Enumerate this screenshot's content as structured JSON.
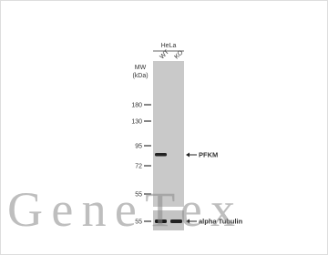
{
  "header": {
    "cell_line": "HeLa",
    "lanes": [
      "WT",
      "KO"
    ]
  },
  "mw_label": [
    "MW",
    "(kDa)"
  ],
  "markers": [
    "180",
    "130",
    "95",
    "72",
    "55",
    "55"
  ],
  "targets": [
    "PFKM",
    "alpha Tubulin"
  ],
  "watermark": "GeneTex"
}
